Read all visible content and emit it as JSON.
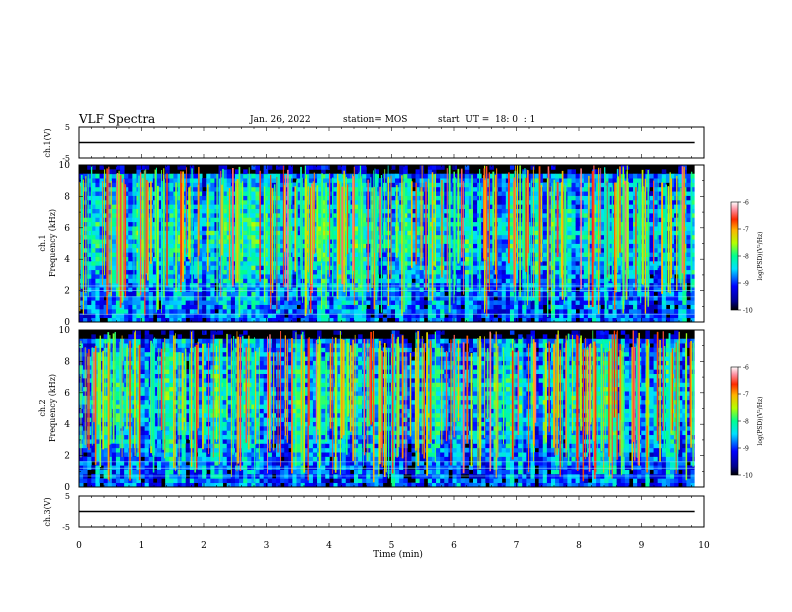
{
  "header": {
    "title": "VLF Spectra",
    "date": "Jan. 26, 2022",
    "station": "station= MOS",
    "start": "start  UT =  18: 0  : 1"
  },
  "chart_data": {
    "type": "heatmap",
    "title": "VLF Spectra",
    "xlabel": "Time  (min)",
    "xlim": [
      0,
      10
    ],
    "xticks": [
      "0",
      "1",
      "2",
      "3",
      "4",
      "5",
      "6",
      "7",
      "8",
      "9",
      "10"
    ],
    "panels": [
      {
        "id": "ch1-voltage",
        "type": "line",
        "ylabel": "ch.1(V)",
        "ylim": [
          -5,
          5
        ],
        "yticks": [
          "5",
          "-5"
        ],
        "series_level": 0
      },
      {
        "id": "ch1-spectrogram",
        "type": "heatmap",
        "ylabel": "ch.1\nFrequency (kHz)",
        "ylim": [
          0,
          10
        ],
        "yticks": [
          "0",
          "2",
          "4",
          "6",
          "8",
          "10"
        ],
        "colorbar": {
          "label": "log(PSD)(V²/Hz)",
          "range": [
            -10,
            -6
          ],
          "ticks": [
            "-6",
            "-7",
            "-8",
            "-9",
            "-10"
          ]
        },
        "reference_lines_khz": [
          0.5,
          1.6,
          2.0,
          2.3
        ],
        "data_end_min": 9.85
      },
      {
        "id": "ch2-spectrogram",
        "type": "heatmap",
        "ylabel": "ch.2\nFrequency (kHz)",
        "ylim": [
          0,
          10
        ],
        "yticks": [
          "0",
          "2",
          "4",
          "6",
          "8",
          "10"
        ],
        "colorbar": {
          "label": "log(PSD)(V²/Hz)",
          "range": [
            -10,
            -6
          ],
          "ticks": [
            "-6",
            "-7",
            "-8",
            "-9",
            "-10"
          ]
        },
        "reference_lines_khz": [
          0.7,
          1.2,
          1.6
        ],
        "data_end_min": 9.85
      },
      {
        "id": "ch3-voltage",
        "type": "line",
        "ylabel": "ch.3(V)",
        "ylim": [
          -5,
          5
        ],
        "yticks": [
          "5",
          "-5"
        ],
        "series_level": 0
      }
    ]
  }
}
